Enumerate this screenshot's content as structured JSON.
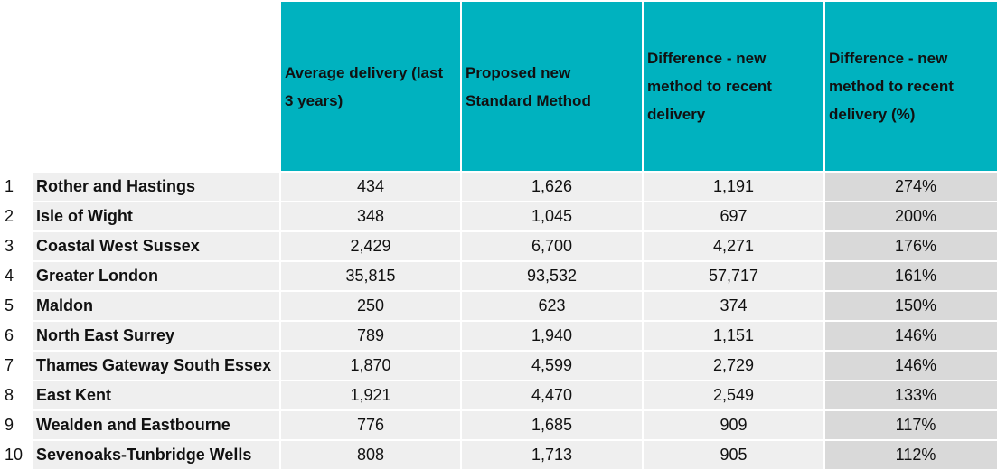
{
  "headers": {
    "avg_delivery": "Average delivery (last 3 years)",
    "proposed": "Proposed new Standard Method",
    "difference": "Difference - new method to recent delivery",
    "difference_pct": "Difference - new method to recent delivery (%)"
  },
  "rows": [
    {
      "rank": "1",
      "name": "Rother and Hastings",
      "avg": "434",
      "proposed": "1,626",
      "diff": "1,191",
      "pct": "274%"
    },
    {
      "rank": "2",
      "name": "Isle of Wight",
      "avg": "348",
      "proposed": "1,045",
      "diff": "697",
      "pct": "200%"
    },
    {
      "rank": "3",
      "name": "Coastal West Sussex",
      "avg": "2,429",
      "proposed": "6,700",
      "diff": "4,271",
      "pct": "176%"
    },
    {
      "rank": "4",
      "name": "Greater London",
      "avg": "35,815",
      "proposed": "93,532",
      "diff": "57,717",
      "pct": "161%"
    },
    {
      "rank": "5",
      "name": "Maldon",
      "avg": "250",
      "proposed": "623",
      "diff": "374",
      "pct": "150%"
    },
    {
      "rank": "6",
      "name": "North East Surrey",
      "avg": "789",
      "proposed": "1,940",
      "diff": "1,151",
      "pct": "146%"
    },
    {
      "rank": "7",
      "name": "Thames Gateway South Essex",
      "avg": "1,870",
      "proposed": "4,599",
      "diff": "2,729",
      "pct": "146%"
    },
    {
      "rank": "8",
      "name": "East Kent",
      "avg": "1,921",
      "proposed": "4,470",
      "diff": "2,549",
      "pct": "133%"
    },
    {
      "rank": "9",
      "name": "Wealden and Eastbourne",
      "avg": "776",
      "proposed": "1,685",
      "diff": "909",
      "pct": "117%"
    },
    {
      "rank": "10",
      "name": "Sevenoaks-Tunbridge Wells",
      "avg": "808",
      "proposed": "1,713",
      "diff": "905",
      "pct": "112%"
    }
  ]
}
